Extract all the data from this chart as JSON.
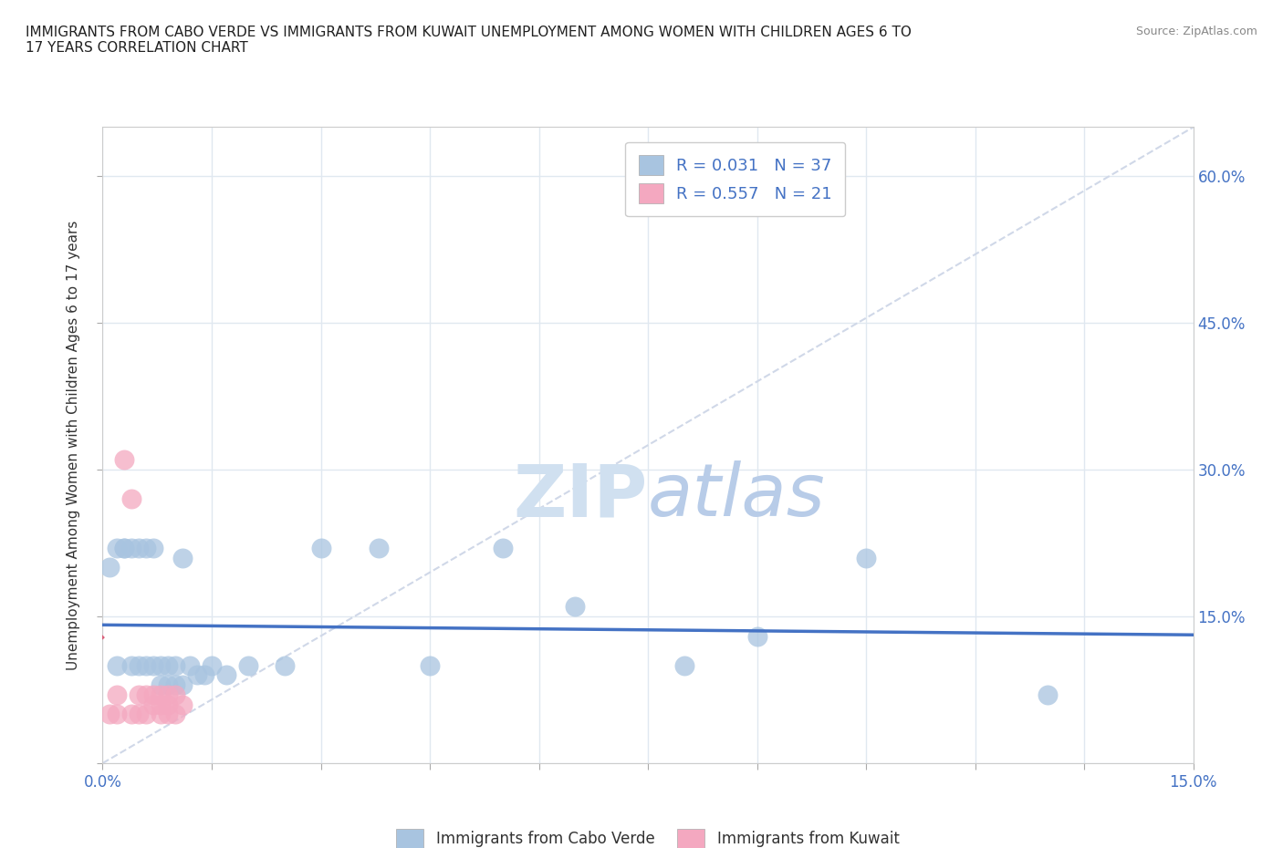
{
  "title": "IMMIGRANTS FROM CABO VERDE VS IMMIGRANTS FROM KUWAIT UNEMPLOYMENT AMONG WOMEN WITH CHILDREN AGES 6 TO\n17 YEARS CORRELATION CHART",
  "source": "Source: ZipAtlas.com",
  "ylabel": "Unemployment Among Women with Children Ages 6 to 17 years",
  "xlim": [
    0.0,
    0.15
  ],
  "ylim": [
    0.0,
    0.65
  ],
  "xticks": [
    0.0,
    0.015,
    0.03,
    0.045,
    0.06,
    0.075,
    0.09,
    0.105,
    0.12,
    0.135,
    0.15
  ],
  "yticks": [
    0.0,
    0.15,
    0.3,
    0.45,
    0.6
  ],
  "xticklabels_sparse": {
    "0.0": "0.0%",
    "0.15": "15.0%"
  },
  "yticklabels_right": [
    "",
    "15.0%",
    "30.0%",
    "45.0%",
    "60.0%"
  ],
  "cabo_verde_r": 0.031,
  "cabo_verde_n": 37,
  "kuwait_r": 0.557,
  "kuwait_n": 21,
  "cabo_verde_color": "#a8c4e0",
  "kuwait_color": "#f4a8c0",
  "cabo_verde_line_color": "#4472c4",
  "kuwait_line_color": "#d9607a",
  "diagonal_color": "#d0d8e8",
  "watermark_color": "#d0e0f0",
  "background_color": "#ffffff",
  "grid_color": "#e0e8f0",
  "tick_color": "#aaaaaa",
  "cabo_verde_x": [
    0.001,
    0.002,
    0.002,
    0.003,
    0.003,
    0.004,
    0.004,
    0.005,
    0.005,
    0.006,
    0.006,
    0.007,
    0.007,
    0.008,
    0.008,
    0.009,
    0.009,
    0.01,
    0.01,
    0.011,
    0.011,
    0.012,
    0.013,
    0.014,
    0.015,
    0.017,
    0.02,
    0.025,
    0.03,
    0.038,
    0.045,
    0.055,
    0.065,
    0.08,
    0.09,
    0.105,
    0.13
  ],
  "cabo_verde_y": [
    0.2,
    0.22,
    0.1,
    0.22,
    0.22,
    0.22,
    0.1,
    0.22,
    0.1,
    0.22,
    0.1,
    0.22,
    0.1,
    0.1,
    0.08,
    0.1,
    0.08,
    0.1,
    0.08,
    0.21,
    0.08,
    0.1,
    0.09,
    0.09,
    0.1,
    0.09,
    0.1,
    0.1,
    0.22,
    0.22,
    0.1,
    0.22,
    0.16,
    0.1,
    0.13,
    0.21,
    0.07
  ],
  "kuwait_x": [
    0.001,
    0.002,
    0.002,
    0.003,
    0.004,
    0.004,
    0.005,
    0.005,
    0.006,
    0.006,
    0.007,
    0.007,
    0.008,
    0.008,
    0.008,
    0.009,
    0.009,
    0.009,
    0.01,
    0.01,
    0.011
  ],
  "kuwait_y": [
    0.05,
    0.05,
    0.07,
    0.31,
    0.27,
    0.05,
    0.05,
    0.07,
    0.05,
    0.07,
    0.06,
    0.07,
    0.06,
    0.07,
    0.05,
    0.06,
    0.07,
    0.05,
    0.05,
    0.07,
    0.06
  ],
  "legend_label_cabo": "Immigrants from Cabo Verde",
  "legend_label_kuwait": "Immigrants from Kuwait"
}
